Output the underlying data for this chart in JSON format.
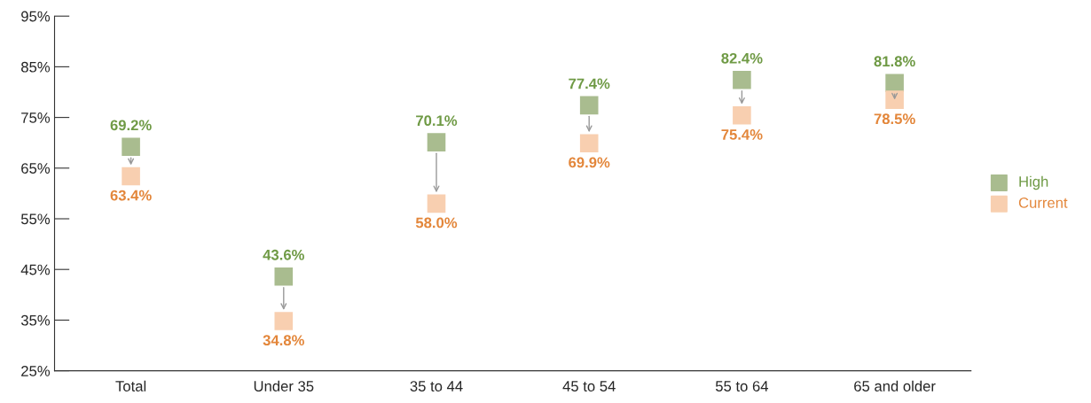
{
  "chart_data": {
    "type": "scatter",
    "categories": [
      "Total",
      "Under 35",
      "35 to 44",
      "45 to 54",
      "55 to 64",
      "65 and older"
    ],
    "series": [
      {
        "name": "High",
        "color": "#a9bc8f",
        "values": [
          69.2,
          43.6,
          70.1,
          77.4,
          82.4,
          81.8
        ],
        "value_labels": [
          "69.2%",
          "43.6%",
          "70.1%",
          "77.4%",
          "82.4%",
          "81.8%"
        ]
      },
      {
        "name": "Current",
        "color": "#f8cfb0",
        "values": [
          63.4,
          34.8,
          58.0,
          69.9,
          75.4,
          78.5
        ],
        "value_labels": [
          "63.4%",
          "34.8%",
          "58.0%",
          "69.9%",
          "75.4%",
          "78.5%"
        ]
      }
    ],
    "ylim": [
      25,
      95
    ],
    "yticks": [
      {
        "value": 25,
        "label": "25%"
      },
      {
        "value": 35,
        "label": "35%"
      },
      {
        "value": 45,
        "label": "45%"
      },
      {
        "value": 55,
        "label": "55%"
      },
      {
        "value": 65,
        "label": "65%"
      },
      {
        "value": 75,
        "label": "75%"
      },
      {
        "value": 85,
        "label": "85%"
      },
      {
        "value": 95,
        "label": "95%"
      }
    ],
    "marker": "square",
    "grid": false,
    "legend": "right"
  }
}
